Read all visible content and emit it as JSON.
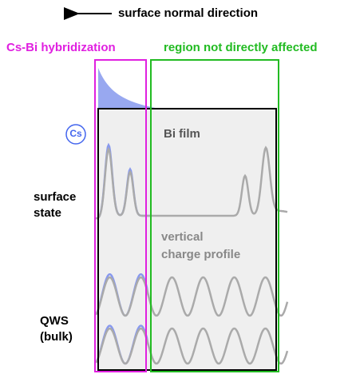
{
  "header": {
    "arrow_label": "surface normal direction"
  },
  "regions": {
    "left": "Cs-Bi hybridization",
    "right": "region not directly affected"
  },
  "labels": {
    "cs": "Cs",
    "film": "Bi film",
    "surface_state": [
      "surface",
      "state"
    ],
    "profile": [
      "vertical",
      "charge profile"
    ],
    "qws": [
      "QWS",
      "(bulk)"
    ]
  }
}
